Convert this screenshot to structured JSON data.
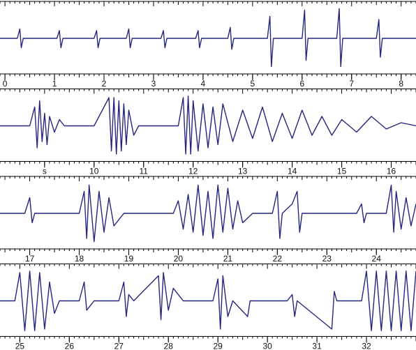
{
  "chart_data": [
    {
      "type": "line",
      "color": "#25257f",
      "minor_tick_step": 0.1,
      "xlim": [
        -0.1,
        8.3
      ],
      "ylim": [
        -1,
        1
      ],
      "xticks": [
        0,
        1,
        2,
        3,
        4,
        5,
        6,
        7,
        8
      ],
      "x": [
        -0.1,
        0.25,
        0.3,
        0.33,
        0.37,
        1.05,
        1.1,
        1.13,
        1.17,
        1.8,
        1.85,
        1.88,
        1.92,
        2.45,
        2.5,
        2.53,
        2.57,
        3.15,
        3.2,
        3.23,
        3.27,
        3.85,
        3.9,
        3.93,
        3.97,
        4.5,
        4.55,
        4.58,
        4.62,
        5.3,
        5.35,
        5.38,
        5.42,
        6.0,
        6.05,
        6.08,
        6.12,
        6.7,
        6.75,
        6.78,
        6.82,
        7.5,
        7.55,
        7.58,
        7.62,
        8.3
      ],
      "values": [
        0,
        0,
        0.3,
        -0.3,
        0,
        0,
        0.25,
        -0.3,
        0,
        0,
        0.25,
        -0.3,
        0,
        0,
        0.3,
        -0.3,
        0,
        0,
        0.25,
        -0.3,
        0,
        0,
        0.25,
        -0.3,
        0,
        0,
        0.35,
        -0.35,
        0,
        0,
        0.7,
        -0.9,
        0,
        0,
        0.9,
        -0.7,
        0,
        0,
        0.95,
        -0.9,
        0,
        0,
        0.6,
        -0.6,
        0,
        0
      ]
    },
    {
      "type": "line",
      "color": "#25257f",
      "minor_tick_step": 0.1,
      "xlim": [
        8.1,
        16.5
      ],
      "ylim": [
        -1,
        1
      ],
      "xticks": [
        {
          "value": 9,
          "label": "s"
        },
        10,
        11,
        12,
        13,
        14,
        15,
        16
      ],
      "x": [
        8.1,
        8.7,
        8.8,
        8.85,
        8.9,
        8.95,
        9.0,
        9.05,
        9.1,
        9.2,
        9.3,
        9.4,
        10.0,
        10.3,
        10.35,
        10.4,
        10.45,
        10.5,
        10.55,
        10.6,
        10.65,
        10.7,
        10.8,
        10.9,
        11.7,
        11.8,
        11.85,
        11.9,
        11.95,
        12.0,
        12.1,
        12.2,
        12.3,
        12.4,
        12.5,
        12.6,
        12.8,
        13.0,
        13.2,
        13.4,
        13.6,
        13.8,
        14.0,
        14.2,
        14.4,
        14.6,
        14.8,
        15.0,
        15.3,
        15.6,
        15.9,
        16.2,
        16.5
      ],
      "values": [
        0,
        0,
        0.6,
        -0.7,
        0.8,
        -0.5,
        0.4,
        -0.6,
        0.3,
        -0.2,
        0.2,
        0,
        0,
        0.9,
        -0.8,
        0.9,
        -0.9,
        0.8,
        -0.8,
        0.7,
        -0.6,
        0.5,
        -0.3,
        0,
        0,
        0.9,
        -0.9,
        0.95,
        -0.9,
        0.8,
        -0.8,
        0.7,
        -0.7,
        0.6,
        -0.6,
        0.7,
        -0.5,
        0.5,
        -0.4,
        0.6,
        -0.5,
        0.4,
        -0.4,
        0.5,
        -0.3,
        0.3,
        -0.3,
        0.2,
        -0.2,
        0.3,
        -0.1,
        0.1,
        0
      ]
    },
    {
      "type": "line",
      "color": "#25257f",
      "minor_tick_step": 0.1,
      "xlim": [
        16.4,
        24.8
      ],
      "ylim": [
        -1,
        1
      ],
      "xticks": [
        17,
        18,
        19,
        20,
        21,
        22,
        23,
        24
      ],
      "x": [
        16.4,
        16.9,
        17.0,
        17.05,
        17.1,
        18.0,
        18.1,
        18.15,
        18.2,
        18.3,
        18.4,
        18.5,
        18.6,
        18.7,
        18.9,
        19.9,
        20.0,
        20.1,
        20.2,
        20.3,
        20.4,
        20.5,
        20.6,
        20.7,
        20.8,
        20.9,
        21.0,
        21.1,
        21.2,
        21.3,
        21.5,
        21.9,
        22.0,
        22.05,
        22.1,
        22.3,
        22.4,
        22.45,
        22.5,
        23.6,
        23.7,
        23.75,
        23.8,
        24.2,
        24.3,
        24.35,
        24.4,
        24.5,
        24.6,
        24.7,
        24.8
      ],
      "values": [
        0,
        0,
        0.5,
        -0.3,
        0,
        0,
        0.7,
        -0.8,
        0.9,
        -0.9,
        0.7,
        -0.6,
        0.5,
        -0.4,
        0,
        0,
        0.4,
        -0.5,
        0.6,
        -0.6,
        0.9,
        -0.7,
        0.7,
        -0.8,
        0.9,
        -0.6,
        0.8,
        -0.5,
        0.4,
        -0.3,
        0,
        0,
        0.7,
        -0.8,
        0,
        0.3,
        0.7,
        -0.6,
        0,
        0,
        0.3,
        -0.3,
        0,
        0,
        0.9,
        -0.6,
        0.7,
        -0.5,
        0.5,
        -0.4,
        0.3
      ]
    },
    {
      "type": "line",
      "color": "#25257f",
      "minor_tick_step": 0.1,
      "xlim": [
        24.6,
        33.0
      ],
      "ylim": [
        -1,
        1
      ],
      "xticks": [
        25,
        26,
        27,
        28,
        29,
        30,
        31,
        32
      ],
      "x": [
        24.6,
        24.9,
        25.0,
        25.1,
        25.2,
        25.3,
        25.4,
        25.5,
        25.6,
        25.7,
        25.8,
        26.2,
        26.3,
        26.35,
        26.5,
        27.0,
        27.1,
        27.15,
        27.2,
        27.3,
        27.8,
        27.85,
        27.9,
        28.0,
        28.1,
        28.3,
        28.9,
        29.0,
        29.05,
        29.1,
        29.2,
        29.3,
        29.6,
        29.65,
        30.4,
        30.5,
        30.55,
        30.6,
        31.3,
        31.35,
        31.4,
        31.9,
        32.0,
        32.1,
        32.2,
        32.3,
        32.4,
        32.5,
        32.6,
        32.7,
        32.8,
        32.9,
        33.0
      ],
      "values": [
        0,
        0,
        0.9,
        -0.95,
        0.95,
        -0.95,
        0.9,
        -0.9,
        0.6,
        -0.4,
        0,
        0,
        0.6,
        -0.3,
        0,
        0,
        0.6,
        -0.5,
        0.2,
        0,
        0.8,
        -0.6,
        0.9,
        -0.3,
        0.4,
        0,
        0,
        0.7,
        -0.9,
        0.8,
        -0.5,
        0,
        -0.5,
        0,
        0,
        0.2,
        -0.5,
        0,
        -0.9,
        0.3,
        0,
        0,
        0.95,
        -0.95,
        0.95,
        -0.95,
        0.95,
        -0.95,
        0.95,
        -0.95,
        0.95,
        -0.95,
        0.95
      ]
    }
  ]
}
